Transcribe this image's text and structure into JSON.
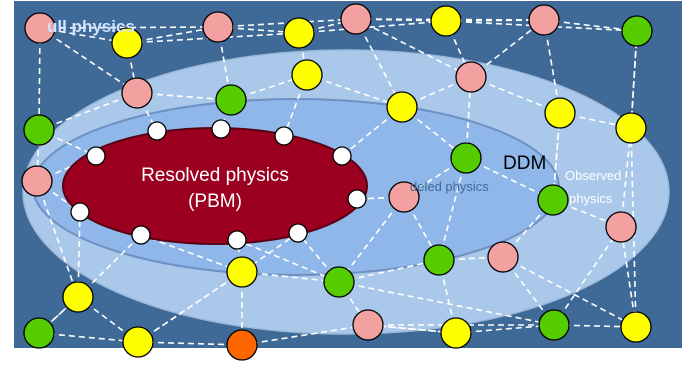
{
  "labels": {
    "full_physics": "ull physics",
    "resolved_line1": "Resolved physics",
    "resolved_line2": "(PBM)",
    "ddm": "DDM",
    "modeled": "deled physics",
    "observed_line1": "Observed",
    "observed_line2": "physics"
  },
  "colors": {
    "background": "#3f6a98",
    "outer_ellipse": "#a9c8ea",
    "middle_ellipse": "#8fb7ea",
    "resolved_ellipse": "#9b0020",
    "edge": "#ffffff",
    "node_pink": "#f2a0a0",
    "node_yellow": "#ffff00",
    "node_green": "#55cc00",
    "node_white": "#ffffff",
    "node_orange": "#ff6600",
    "title_text": "#cfe3ff",
    "modeled_text": "#3f6a98",
    "observed_text": "#ffffff"
  },
  "node_types": [
    "pink",
    "yellow",
    "green",
    "white",
    "orange"
  ]
}
